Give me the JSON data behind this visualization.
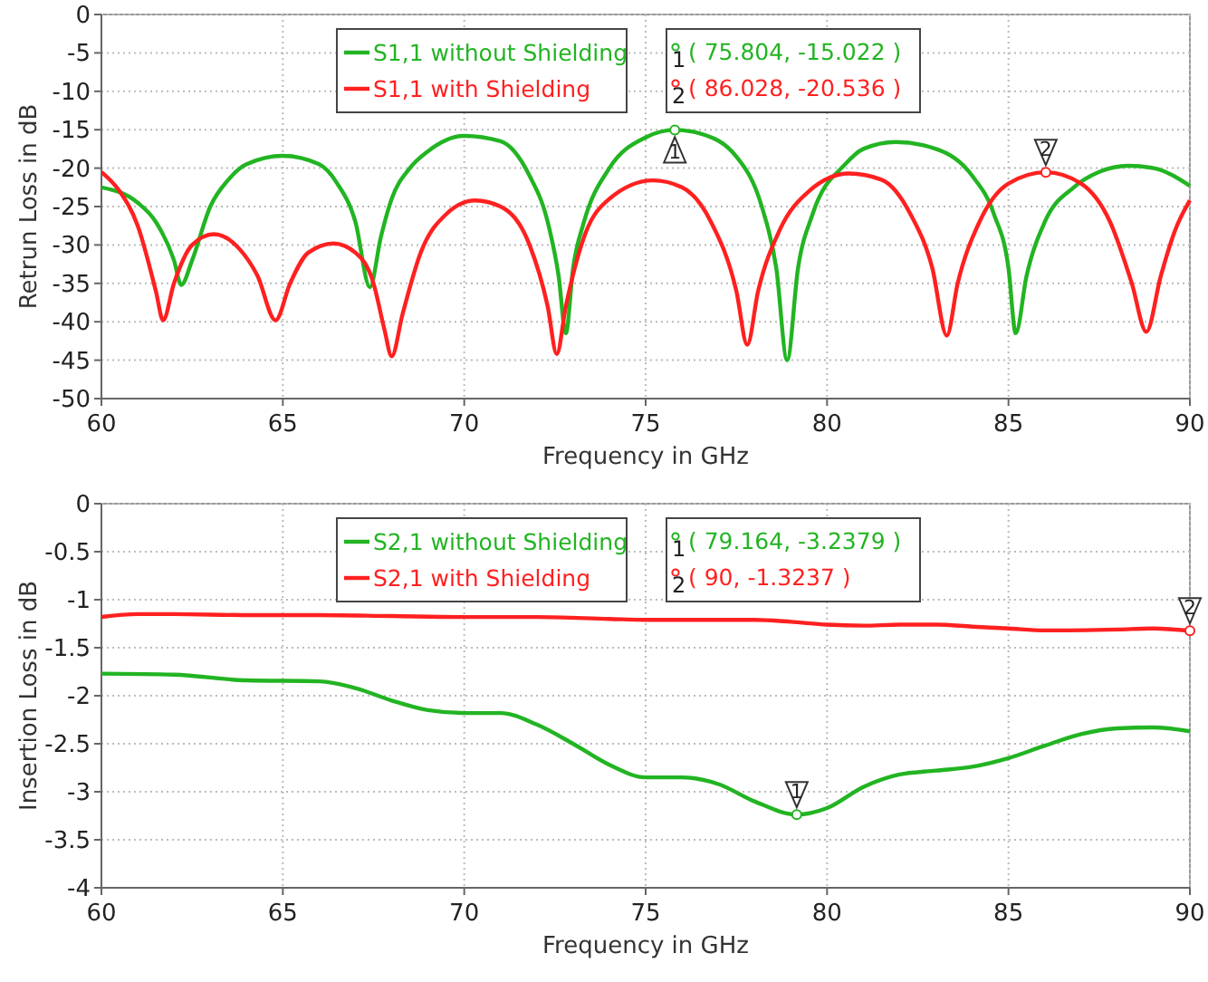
{
  "chart_data": [
    {
      "type": "line",
      "xlabel": "Frequency in GHz",
      "ylabel": "Retrun Loss in dB",
      "xlim": [
        60,
        90
      ],
      "xticks": [
        60,
        65,
        70,
        75,
        80,
        85,
        90
      ],
      "ylim": [
        -50,
        0
      ],
      "yticks": [
        -50,
        -45,
        -40,
        -35,
        -30,
        -25,
        -20,
        -15,
        -10,
        -5,
        0
      ],
      "grid": true,
      "legend": "top left",
      "line_style": "solid",
      "marker": "none",
      "series": [
        {
          "name": "S1,1 without Shielding",
          "color": "#22b422",
          "x": [
            60,
            61,
            61.5,
            62,
            62.2,
            62.5,
            63,
            63.5,
            64,
            65,
            66,
            66.5,
            67,
            67.4,
            67.7,
            68,
            68.5,
            69,
            70,
            71,
            71.8,
            72.3,
            72.6,
            72.8,
            73,
            73.3,
            74,
            75,
            75.804,
            76.5,
            77.5,
            78.2,
            78.6,
            78.9,
            79.2,
            79.6,
            80.5,
            81,
            81.9,
            83,
            84,
            84.6,
            85,
            85.2,
            85.5,
            86,
            86.8,
            87.5,
            88.3,
            89,
            90
          ],
          "values": [
            -22.5,
            -24.5,
            -27,
            -32,
            -35.2,
            -32,
            -25,
            -21.5,
            -19.5,
            -18.4,
            -19.5,
            -22,
            -27,
            -35.5,
            -29,
            -24,
            -20,
            -17.8,
            -15.8,
            -16.5,
            -21,
            -27,
            -34,
            -41.5,
            -33,
            -27,
            -20,
            -16,
            -15.022,
            -15.5,
            -18.5,
            -25,
            -33,
            -45,
            -33,
            -26,
            -19.5,
            -17.5,
            -16.6,
            -17.5,
            -21,
            -26,
            -33,
            -41.5,
            -34,
            -27,
            -22.5,
            -20.5,
            -19.7,
            -20,
            -22.3
          ]
        },
        {
          "name": "S1,1 with Shielding",
          "color": "#ff2020",
          "x": [
            60,
            60.5,
            61,
            61.5,
            61.7,
            62,
            62.5,
            63.1,
            63.8,
            64.3,
            64.8,
            65.2,
            65.7,
            66.4,
            67,
            67.5,
            67.8,
            68,
            68.3,
            68.8,
            69.5,
            70.3,
            71,
            71.8,
            72.3,
            72.55,
            72.8,
            73.3,
            74,
            75.2,
            76,
            76.8,
            77.5,
            77.8,
            78.1,
            78.7,
            79.5,
            80.6,
            81.5,
            82.3,
            82.9,
            83.3,
            83.6,
            84.2,
            85,
            86.028,
            87,
            87.8,
            88.4,
            88.8,
            89.2,
            89.6,
            90
          ],
          "values": [
            -20.5,
            -23,
            -27.5,
            -36,
            -39.8,
            -35,
            -30,
            -28.6,
            -30.5,
            -34,
            -39.8,
            -35,
            -31,
            -29.8,
            -31,
            -35,
            -41,
            -44.5,
            -39,
            -31,
            -26,
            -24.2,
            -25,
            -30,
            -38,
            -44.2,
            -38,
            -29,
            -24,
            -21.6,
            -22.5,
            -27,
            -36,
            -43,
            -36,
            -28,
            -23,
            -20.7,
            -21.5,
            -26,
            -33,
            -41.8,
            -35,
            -27,
            -22,
            -20.536,
            -22,
            -27,
            -35,
            -41.3,
            -34,
            -28,
            -24.2
          ]
        }
      ],
      "annotations": [
        {
          "text": "1",
          "x": 75.804,
          "y": -15.022
        },
        "( 75.804, -15.022 )",
        {
          "text": "2",
          "x": 86.028,
          "y": -20.536
        },
        "( 86.028, -20.536 )"
      ]
    },
    {
      "type": "line",
      "xlabel": "Frequency in GHz",
      "ylabel": "Insertion Loss in dB",
      "xlim": [
        60,
        90
      ],
      "xticks": [
        60,
        65,
        70,
        75,
        80,
        85,
        90
      ],
      "ylim": [
        -4,
        0
      ],
      "yticks": [
        -4,
        -3.5,
        -3,
        -2.5,
        -2,
        -1.5,
        -1,
        -0.5,
        0
      ],
      "grid": true,
      "legend": "top left",
      "line_style": "solid",
      "marker": "none",
      "series": [
        {
          "name": "S2,1 without Shielding",
          "color": "#22b422",
          "x": [
            60,
            62,
            64,
            66,
            67,
            68,
            69,
            70,
            71,
            72,
            73,
            74,
            75,
            76,
            77,
            78,
            79.164,
            80,
            81,
            82,
            83,
            84,
            85,
            86,
            87,
            88,
            89,
            90
          ],
          "values": [
            -1.77,
            -1.78,
            -1.84,
            -1.85,
            -1.92,
            -2.05,
            -2.15,
            -2.18,
            -2.18,
            -2.3,
            -2.5,
            -2.72,
            -2.85,
            -2.85,
            -2.92,
            -3.1,
            -3.2379,
            -3.17,
            -2.95,
            -2.82,
            -2.78,
            -2.74,
            -2.65,
            -2.52,
            -2.4,
            -2.34,
            -2.33,
            -2.37
          ]
        },
        {
          "name": "S2,1 with Shielding",
          "color": "#ff2020",
          "x": [
            60,
            61,
            62,
            64,
            66,
            68,
            70,
            72,
            74,
            75,
            76,
            78,
            79,
            80,
            81,
            82,
            83,
            84,
            85,
            86,
            88,
            89,
            90
          ],
          "values": [
            -1.18,
            -1.15,
            -1.15,
            -1.16,
            -1.16,
            -1.17,
            -1.18,
            -1.18,
            -1.2,
            -1.21,
            -1.21,
            -1.21,
            -1.23,
            -1.26,
            -1.27,
            -1.26,
            -1.26,
            -1.28,
            -1.3,
            -1.32,
            -1.31,
            -1.3,
            -1.3237
          ]
        }
      ],
      "annotations": [
        {
          "text": "1",
          "x": 79.164,
          "y": -3.2379
        },
        "( 79.164, -3.2379 )",
        {
          "text": "2",
          "x": 90,
          "y": -1.3237
        },
        "( 90, -1.3237 )"
      ]
    }
  ]
}
